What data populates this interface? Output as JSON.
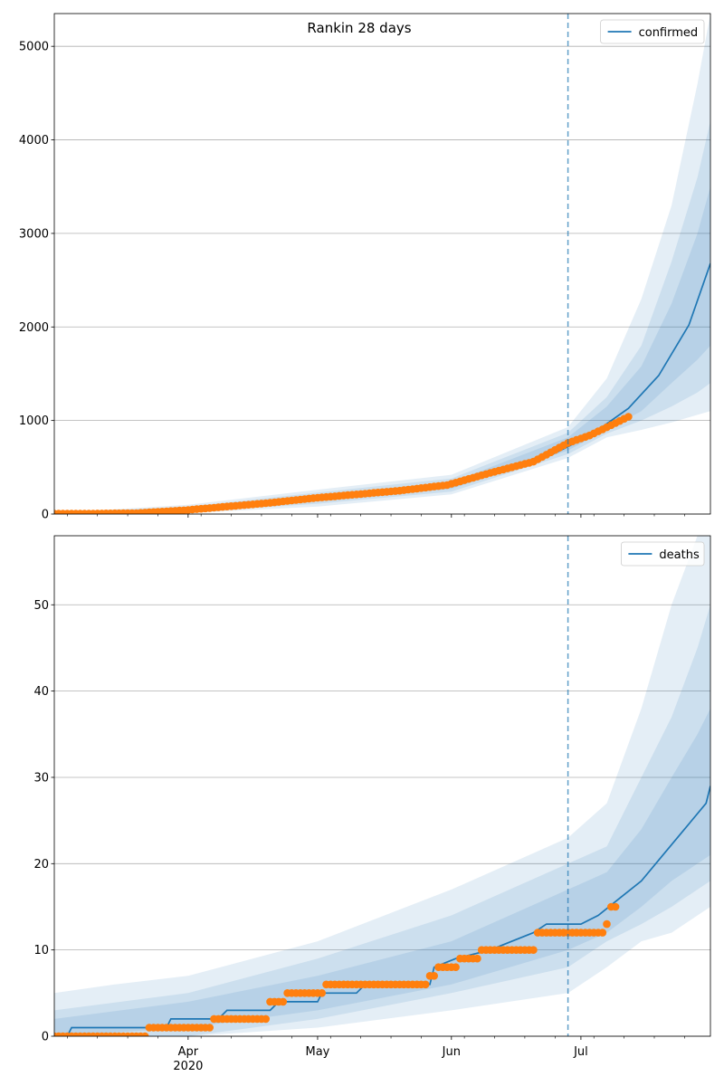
{
  "chart_data": [
    {
      "type": "line",
      "title": "Rankin 28 days",
      "ylim": [
        0,
        5350
      ],
      "yticks": [
        0,
        1000,
        2000,
        3000,
        4000,
        5000
      ],
      "grid": "y",
      "legend": {
        "position": "top-right",
        "entries": [
          "confirmed"
        ]
      },
      "x_range": [
        "2020-03-01",
        "2020-07-31"
      ],
      "x_major_ticks": [
        {
          "date": "2020-04-01",
          "label": "Apr",
          "sublabel": "2020"
        },
        {
          "date": "2020-05-01",
          "label": "May"
        },
        {
          "date": "2020-06-01",
          "label": "Jun"
        },
        {
          "date": "2020-07-01",
          "label": "Jul"
        }
      ],
      "forecast_start": "2020-06-28",
      "series": [
        {
          "name": "confirmed",
          "kind": "model",
          "color": "#1f77b4",
          "points": [
            [
              "2020-03-01",
              5
            ],
            [
              "2020-03-10",
              5
            ],
            [
              "2020-03-20",
              12
            ],
            [
              "2020-03-31",
              40
            ],
            [
              "2020-04-10",
              75
            ],
            [
              "2020-04-20",
              110
            ],
            [
              "2020-04-30",
              160
            ],
            [
              "2020-05-10",
              200
            ],
            [
              "2020-05-20",
              240
            ],
            [
              "2020-05-31",
              300
            ],
            [
              "2020-06-10",
              420
            ],
            [
              "2020-06-20",
              540
            ],
            [
              "2020-06-28",
              720
            ],
            [
              "2020-07-05",
              900
            ],
            [
              "2020-07-12",
              1130
            ],
            [
              "2020-07-19",
              1480
            ],
            [
              "2020-07-26",
              2020
            ],
            [
              "2020-07-31",
              2680
            ]
          ]
        },
        {
          "kind": "observed",
          "color": "#ff7f0e",
          "points": [
            [
              "2020-03-01",
              5
            ],
            [
              "2020-03-10",
              5
            ],
            [
              "2020-03-20",
              10
            ],
            [
              "2020-03-31",
              40
            ],
            [
              "2020-04-10",
              80
            ],
            [
              "2020-04-20",
              120
            ],
            [
              "2020-04-30",
              170
            ],
            [
              "2020-05-10",
              210
            ],
            [
              "2020-05-20",
              250
            ],
            [
              "2020-05-31",
              310
            ],
            [
              "2020-06-10",
              440
            ],
            [
              "2020-06-20",
              560
            ],
            [
              "2020-06-28",
              760
            ],
            [
              "2020-07-03",
              840
            ],
            [
              "2020-07-08",
              950
            ],
            [
              "2020-07-12",
              1040
            ]
          ]
        }
      ],
      "bands": [
        {
          "opacity": 0.12,
          "upper": [
            [
              "2020-03-01",
              10
            ],
            [
              "2020-04-01",
              100
            ],
            [
              "2020-05-01",
              260
            ],
            [
              "2020-06-01",
              420
            ],
            [
              "2020-06-28",
              930
            ],
            [
              "2020-07-07",
              1450
            ],
            [
              "2020-07-15",
              2300
            ],
            [
              "2020-07-22",
              3300
            ],
            [
              "2020-07-28",
              4600
            ],
            [
              "2020-07-31",
              5350
            ]
          ],
          "lower": [
            [
              "2020-03-01",
              0
            ],
            [
              "2020-04-01",
              10
            ],
            [
              "2020-05-01",
              80
            ],
            [
              "2020-06-01",
              210
            ],
            [
              "2020-06-28",
              600
            ],
            [
              "2020-07-07",
              820
            ],
            [
              "2020-07-15",
              900
            ],
            [
              "2020-07-22",
              980
            ],
            [
              "2020-07-28",
              1060
            ],
            [
              "2020-07-31",
              1100
            ]
          ]
        },
        {
          "opacity": 0.12,
          "upper": [
            [
              "2020-03-01",
              8
            ],
            [
              "2020-04-01",
              80
            ],
            [
              "2020-05-01",
              230
            ],
            [
              "2020-06-01",
              380
            ],
            [
              "2020-06-28",
              870
            ],
            [
              "2020-07-07",
              1250
            ],
            [
              "2020-07-15",
              1800
            ],
            [
              "2020-07-22",
              2700
            ],
            [
              "2020-07-28",
              3600
            ],
            [
              "2020-07-31",
              4200
            ]
          ],
          "lower": [
            [
              "2020-03-01",
              0
            ],
            [
              "2020-04-01",
              20
            ],
            [
              "2020-05-01",
              110
            ],
            [
              "2020-06-01",
              240
            ],
            [
              "2020-06-28",
              640
            ],
            [
              "2020-07-07",
              860
            ],
            [
              "2020-07-15",
              1000
            ],
            [
              "2020-07-22",
              1150
            ],
            [
              "2020-07-28",
              1300
            ],
            [
              "2020-07-31",
              1400
            ]
          ]
        },
        {
          "opacity": 0.12,
          "upper": [
            [
              "2020-03-01",
              6
            ],
            [
              "2020-04-01",
              60
            ],
            [
              "2020-05-01",
              200
            ],
            [
              "2020-06-01",
              340
            ],
            [
              "2020-06-28",
              820
            ],
            [
              "2020-07-07",
              1150
            ],
            [
              "2020-07-15",
              1580
            ],
            [
              "2020-07-22",
              2250
            ],
            [
              "2020-07-28",
              3000
            ],
            [
              "2020-07-31",
              3500
            ]
          ],
          "lower": [
            [
              "2020-03-01",
              2
            ],
            [
              "2020-04-01",
              30
            ],
            [
              "2020-05-01",
              140
            ],
            [
              "2020-06-01",
              270
            ],
            [
              "2020-06-28",
              680
            ],
            [
              "2020-07-07",
              900
            ],
            [
              "2020-07-15",
              1100
            ],
            [
              "2020-07-22",
              1400
            ],
            [
              "2020-07-28",
              1650
            ],
            [
              "2020-07-31",
              1800
            ]
          ]
        }
      ]
    },
    {
      "type": "line",
      "title": "",
      "ylim": [
        0,
        58
      ],
      "yticks": [
        0,
        10,
        20,
        30,
        40,
        50
      ],
      "grid": "y",
      "legend": {
        "position": "top-right",
        "entries": [
          "deaths"
        ]
      },
      "x_range": [
        "2020-03-01",
        "2020-07-31"
      ],
      "x_major_ticks": [
        {
          "date": "2020-04-01",
          "label": "Apr",
          "sublabel": "2020"
        },
        {
          "date": "2020-05-01",
          "label": "May"
        },
        {
          "date": "2020-06-01",
          "label": "Jun"
        },
        {
          "date": "2020-07-01",
          "label": "Jul"
        }
      ],
      "forecast_start": "2020-06-28",
      "series": [
        {
          "name": "deaths",
          "kind": "model",
          "color": "#1f77b4",
          "points": [
            [
              "2020-03-01",
              0
            ],
            [
              "2020-03-04",
              0
            ],
            [
              "2020-03-05",
              1
            ],
            [
              "2020-03-27",
              1
            ],
            [
              "2020-03-28",
              2
            ],
            [
              "2020-04-08",
              2
            ],
            [
              "2020-04-10",
              3
            ],
            [
              "2020-04-20",
              3
            ],
            [
              "2020-04-22",
              4
            ],
            [
              "2020-05-01",
              4
            ],
            [
              "2020-05-02",
              5
            ],
            [
              "2020-05-10",
              5
            ],
            [
              "2020-05-12",
              6
            ],
            [
              "2020-05-27",
              6
            ],
            [
              "2020-05-28",
              8
            ],
            [
              "2020-06-02",
              9
            ],
            [
              "2020-06-10",
              10
            ],
            [
              "2020-06-15",
              11
            ],
            [
              "2020-06-20",
              12
            ],
            [
              "2020-06-23",
              13
            ],
            [
              "2020-07-01",
              13
            ],
            [
              "2020-07-05",
              14
            ],
            [
              "2020-07-10",
              16
            ],
            [
              "2020-07-15",
              18
            ],
            [
              "2020-07-20",
              21
            ],
            [
              "2020-07-25",
              24
            ],
            [
              "2020-07-30",
              27
            ],
            [
              "2020-07-31",
              29
            ]
          ]
        },
        {
          "kind": "observed",
          "color": "#ff7f0e",
          "points": [
            [
              "2020-03-01",
              0
            ],
            [
              "2020-03-10",
              0
            ],
            [
              "2020-03-21",
              0
            ],
            [
              "2020-03-23",
              1
            ],
            [
              "2020-04-05",
              1
            ],
            [
              "2020-04-07",
              2
            ],
            [
              "2020-04-18",
              2
            ],
            [
              "2020-04-20",
              4
            ],
            [
              "2020-04-23",
              4
            ],
            [
              "2020-04-24",
              5
            ],
            [
              "2020-05-02",
              5
            ],
            [
              "2020-05-03",
              6
            ],
            [
              "2020-05-26",
              6
            ],
            [
              "2020-05-27",
              7
            ],
            [
              "2020-05-28",
              7
            ],
            [
              "2020-05-29",
              8
            ],
            [
              "2020-06-02",
              8
            ],
            [
              "2020-06-03",
              9
            ],
            [
              "2020-06-07",
              9
            ],
            [
              "2020-06-08",
              10
            ],
            [
              "2020-06-20",
              10
            ],
            [
              "2020-06-21",
              12
            ],
            [
              "2020-07-06",
              12
            ],
            [
              "2020-07-07",
              13
            ],
            [
              "2020-07-08",
              15
            ],
            [
              "2020-07-09",
              15
            ]
          ]
        }
      ],
      "bands": [
        {
          "opacity": 0.12,
          "upper": [
            [
              "2020-03-01",
              5
            ],
            [
              "2020-03-15",
              6
            ],
            [
              "2020-04-01",
              7
            ],
            [
              "2020-05-01",
              11
            ],
            [
              "2020-06-01",
              17
            ],
            [
              "2020-06-28",
              23
            ],
            [
              "2020-07-07",
              27
            ],
            [
              "2020-07-15",
              38
            ],
            [
              "2020-07-22",
              50
            ],
            [
              "2020-07-28",
              58
            ],
            [
              "2020-07-31",
              58
            ]
          ],
          "lower": [
            [
              "2020-03-01",
              0
            ],
            [
              "2020-04-01",
              0
            ],
            [
              "2020-05-01",
              1
            ],
            [
              "2020-06-01",
              3
            ],
            [
              "2020-06-28",
              5
            ],
            [
              "2020-07-07",
              8
            ],
            [
              "2020-07-15",
              11
            ],
            [
              "2020-07-22",
              12
            ],
            [
              "2020-07-28",
              14
            ],
            [
              "2020-07-31",
              15
            ]
          ]
        },
        {
          "opacity": 0.12,
          "upper": [
            [
              "2020-03-01",
              3
            ],
            [
              "2020-04-01",
              5
            ],
            [
              "2020-05-01",
              9
            ],
            [
              "2020-06-01",
              14
            ],
            [
              "2020-06-28",
              20
            ],
            [
              "2020-07-07",
              22
            ],
            [
              "2020-07-15",
              30
            ],
            [
              "2020-07-22",
              37
            ],
            [
              "2020-07-28",
              45
            ],
            [
              "2020-07-31",
              50
            ]
          ],
          "lower": [
            [
              "2020-03-01",
              0
            ],
            [
              "2020-04-01",
              0
            ],
            [
              "2020-05-01",
              2
            ],
            [
              "2020-06-01",
              5
            ],
            [
              "2020-06-28",
              8
            ],
            [
              "2020-07-07",
              11
            ],
            [
              "2020-07-15",
              13
            ],
            [
              "2020-07-22",
              15
            ],
            [
              "2020-07-28",
              17
            ],
            [
              "2020-07-31",
              18
            ]
          ]
        },
        {
          "opacity": 0.12,
          "upper": [
            [
              "2020-03-01",
              2
            ],
            [
              "2020-04-01",
              4
            ],
            [
              "2020-05-01",
              7
            ],
            [
              "2020-06-01",
              11
            ],
            [
              "2020-06-28",
              17
            ],
            [
              "2020-07-07",
              19
            ],
            [
              "2020-07-15",
              24
            ],
            [
              "2020-07-22",
              30
            ],
            [
              "2020-07-28",
              35
            ],
            [
              "2020-07-31",
              38
            ]
          ],
          "lower": [
            [
              "2020-03-01",
              0
            ],
            [
              "2020-04-01",
              1
            ],
            [
              "2020-05-01",
              3
            ],
            [
              "2020-06-01",
              6
            ],
            [
              "2020-06-28",
              10
            ],
            [
              "2020-07-07",
              12
            ],
            [
              "2020-07-15",
              15
            ],
            [
              "2020-07-22",
              18
            ],
            [
              "2020-07-28",
              20
            ],
            [
              "2020-07-31",
              21
            ]
          ]
        }
      ]
    }
  ]
}
